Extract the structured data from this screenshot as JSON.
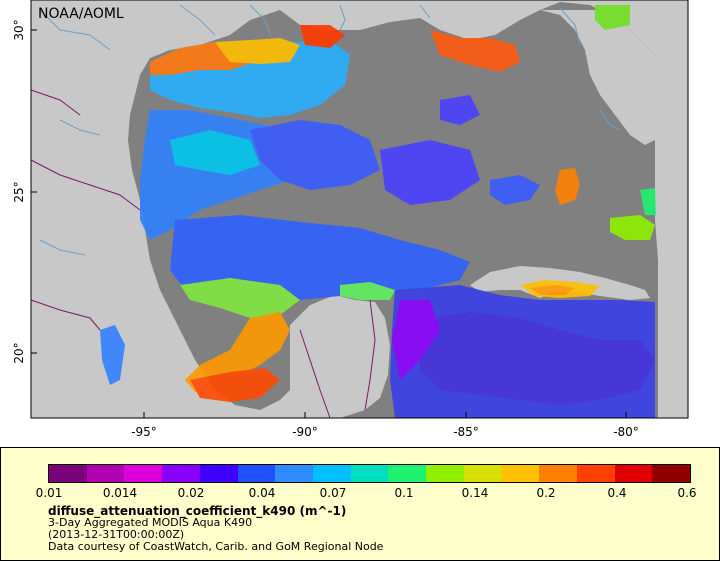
{
  "map": {
    "badge": "NOAA/AOML",
    "lon_labels": [
      "-95°",
      "-90°",
      "-85°",
      "-80°"
    ],
    "lat_labels": [
      "30°",
      "25°",
      "20°"
    ],
    "colors": {
      "ocean_nodata": "#808080",
      "land": "#c8c8c8",
      "rivers": "#6aa0c8",
      "borders": "#7a1a6a",
      "frame": "#000000"
    }
  },
  "legend": {
    "colorbar_colors": [
      "#7b007b",
      "#b000b0",
      "#dd00dd",
      "#8a00ff",
      "#4000ff",
      "#2050ff",
      "#2f8cff",
      "#00c0ff",
      "#00e0c0",
      "#20f070",
      "#90f000",
      "#d8e000",
      "#ffc000",
      "#ff8000",
      "#ff4000",
      "#e00000",
      "#900000"
    ],
    "ticks": [
      "0.01",
      "0.014",
      "0.02",
      "0.04",
      "0.07",
      "0.1",
      "0.14",
      "0.2",
      "0.4",
      "0.6"
    ],
    "variable": "diffuse_attenuation_coefficient_k490 (m^-1)",
    "line1": "3-Day Aggregated MODIS Aqua K490",
    "line2": "(2013-12-31T00:00:00Z)",
    "line3": "Data courtesy of CoastWatch, Carib. and GoM Regional Node"
  }
}
